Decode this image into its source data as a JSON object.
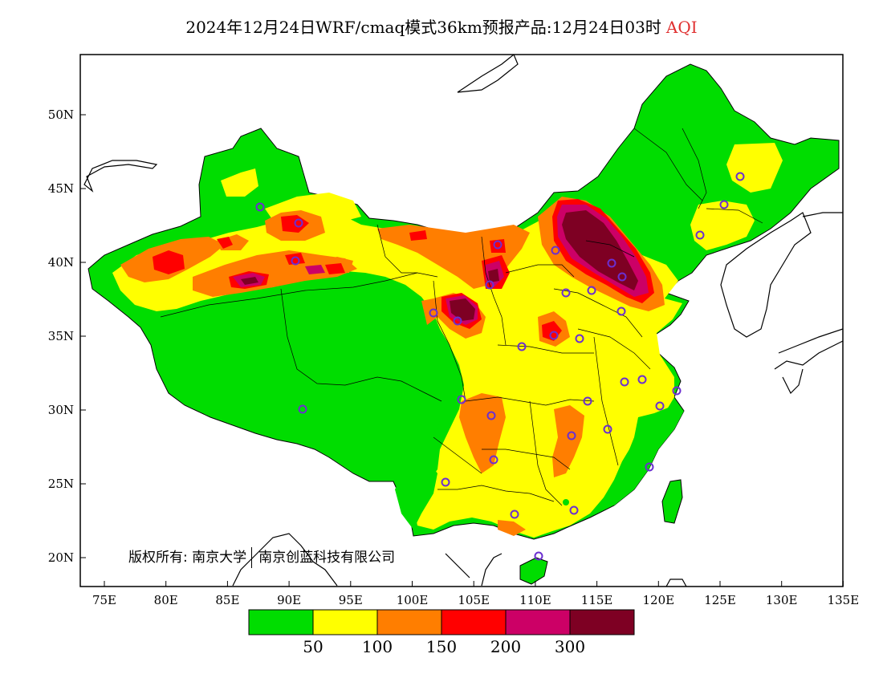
{
  "title": {
    "main": "2024年12月24日WRF/cmaq模式36km预报产品:12月24日03时",
    "highlight": "AQI"
  },
  "map": {
    "lon_ticks": [
      "75E",
      "80E",
      "85E",
      "90E",
      "95E",
      "100E",
      "105E",
      "110E",
      "115E",
      "120E",
      "125E",
      "130E",
      "135E"
    ],
    "lat_ticks": [
      "50N",
      "45N",
      "40N",
      "35N",
      "30N",
      "25N",
      "20N"
    ],
    "copyright": "版权所有: 南京大学",
    "copyright2": "南京创蓝科技有限公司"
  },
  "colorbar": {
    "colors": [
      "#00dd00",
      "#ffff00",
      "#ff7e00",
      "#ff0000",
      "#cc0066",
      "#7e0023"
    ],
    "labels": [
      "50",
      "100",
      "150",
      "200",
      "300"
    ]
  }
}
